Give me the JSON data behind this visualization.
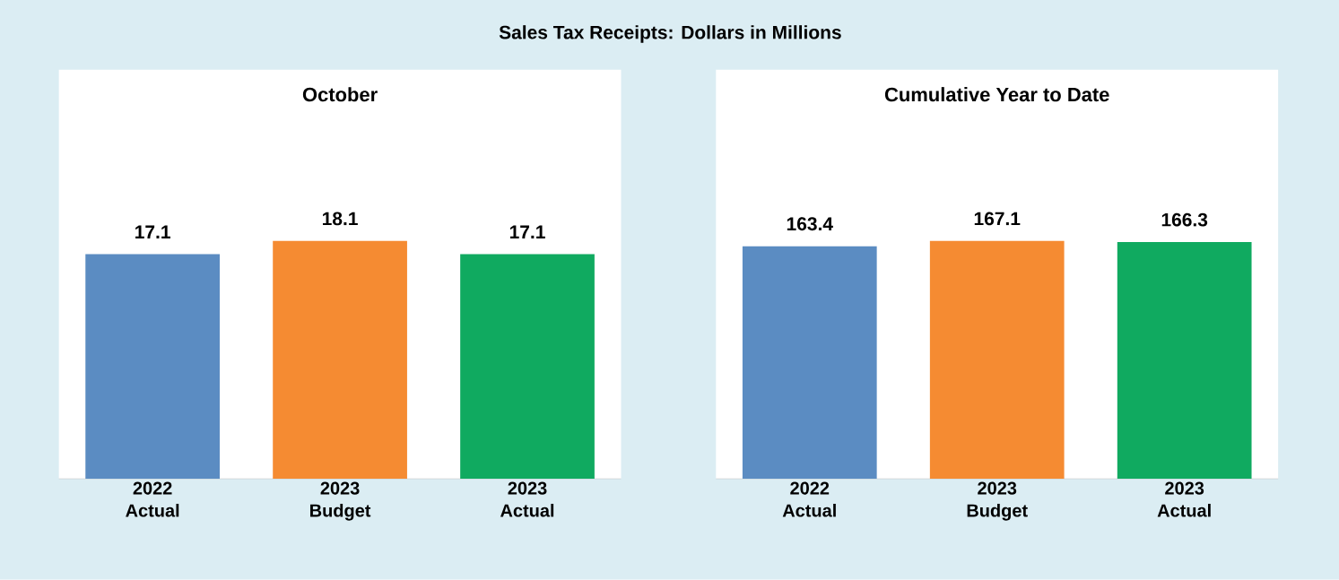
{
  "chart_data": [
    {
      "type": "bar",
      "title": "October",
      "annotations": [
        "Sales Tax Receipts:  Dollars in Millions"
      ],
      "categories": [
        "2022 Actual",
        "2023 Budget",
        "2023 Actual"
      ],
      "values": [
        17.1,
        18.1,
        17.1
      ],
      "colors": [
        "#5b8cc2",
        "#f58b32",
        "#10aa60"
      ],
      "tick_labels": "x",
      "data_labels": true
    },
    {
      "type": "bar",
      "title": "Cumulative Year to Date",
      "categories": [
        "2022 Actual",
        "2023 Budget",
        "2023 Actual"
      ],
      "values": [
        163.4,
        167.1,
        166.3
      ],
      "colors": [
        "#5b8cc2",
        "#f58b32",
        "#10aa60"
      ],
      "tick_labels": "x",
      "data_labels": true
    }
  ]
}
